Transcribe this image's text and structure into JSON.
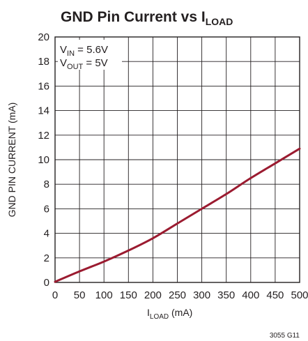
{
  "chart_data": {
    "type": "line",
    "title": {
      "main": "GND Pin Current vs I",
      "sub": "LOAD"
    },
    "xlabel": {
      "main": "I",
      "sub": "LOAD",
      "unit": " (mA)"
    },
    "ylabel": "GND PIN CURRENT (mA)",
    "xlim": [
      0,
      500
    ],
    "ylim": [
      0,
      20
    ],
    "x_ticks": [
      0,
      50,
      100,
      150,
      200,
      250,
      300,
      350,
      400,
      450,
      500
    ],
    "y_ticks": [
      0,
      2,
      4,
      6,
      8,
      10,
      12,
      14,
      16,
      18,
      20
    ],
    "grid": true,
    "annotations": [
      {
        "main": "V",
        "sub": "IN",
        "rest": " = 5.6V"
      },
      {
        "main": "V",
        "sub": "OUT",
        "rest": " = 5V"
      }
    ],
    "figure_id": "3055 G11",
    "series": [
      {
        "color": "#9b1b30",
        "x": [
          0,
          50,
          100,
          150,
          200,
          250,
          300,
          350,
          400,
          450,
          500
        ],
        "y": [
          0.05,
          0.9,
          1.7,
          2.6,
          3.6,
          4.8,
          6.0,
          7.2,
          8.5,
          9.7,
          10.9
        ]
      }
    ]
  }
}
